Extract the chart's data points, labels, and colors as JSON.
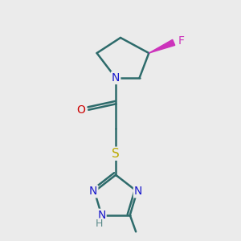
{
  "background_color": "#ebebeb",
  "bond_color": "#2d6b6b",
  "bond_width": 1.8,
  "atom_colors": {
    "N": "#1a1acc",
    "O": "#cc0000",
    "S": "#bbaa00",
    "F": "#cc33bb",
    "C": "#2d6b6b",
    "H": "#5a8a8a"
  },
  "font_size": 10
}
